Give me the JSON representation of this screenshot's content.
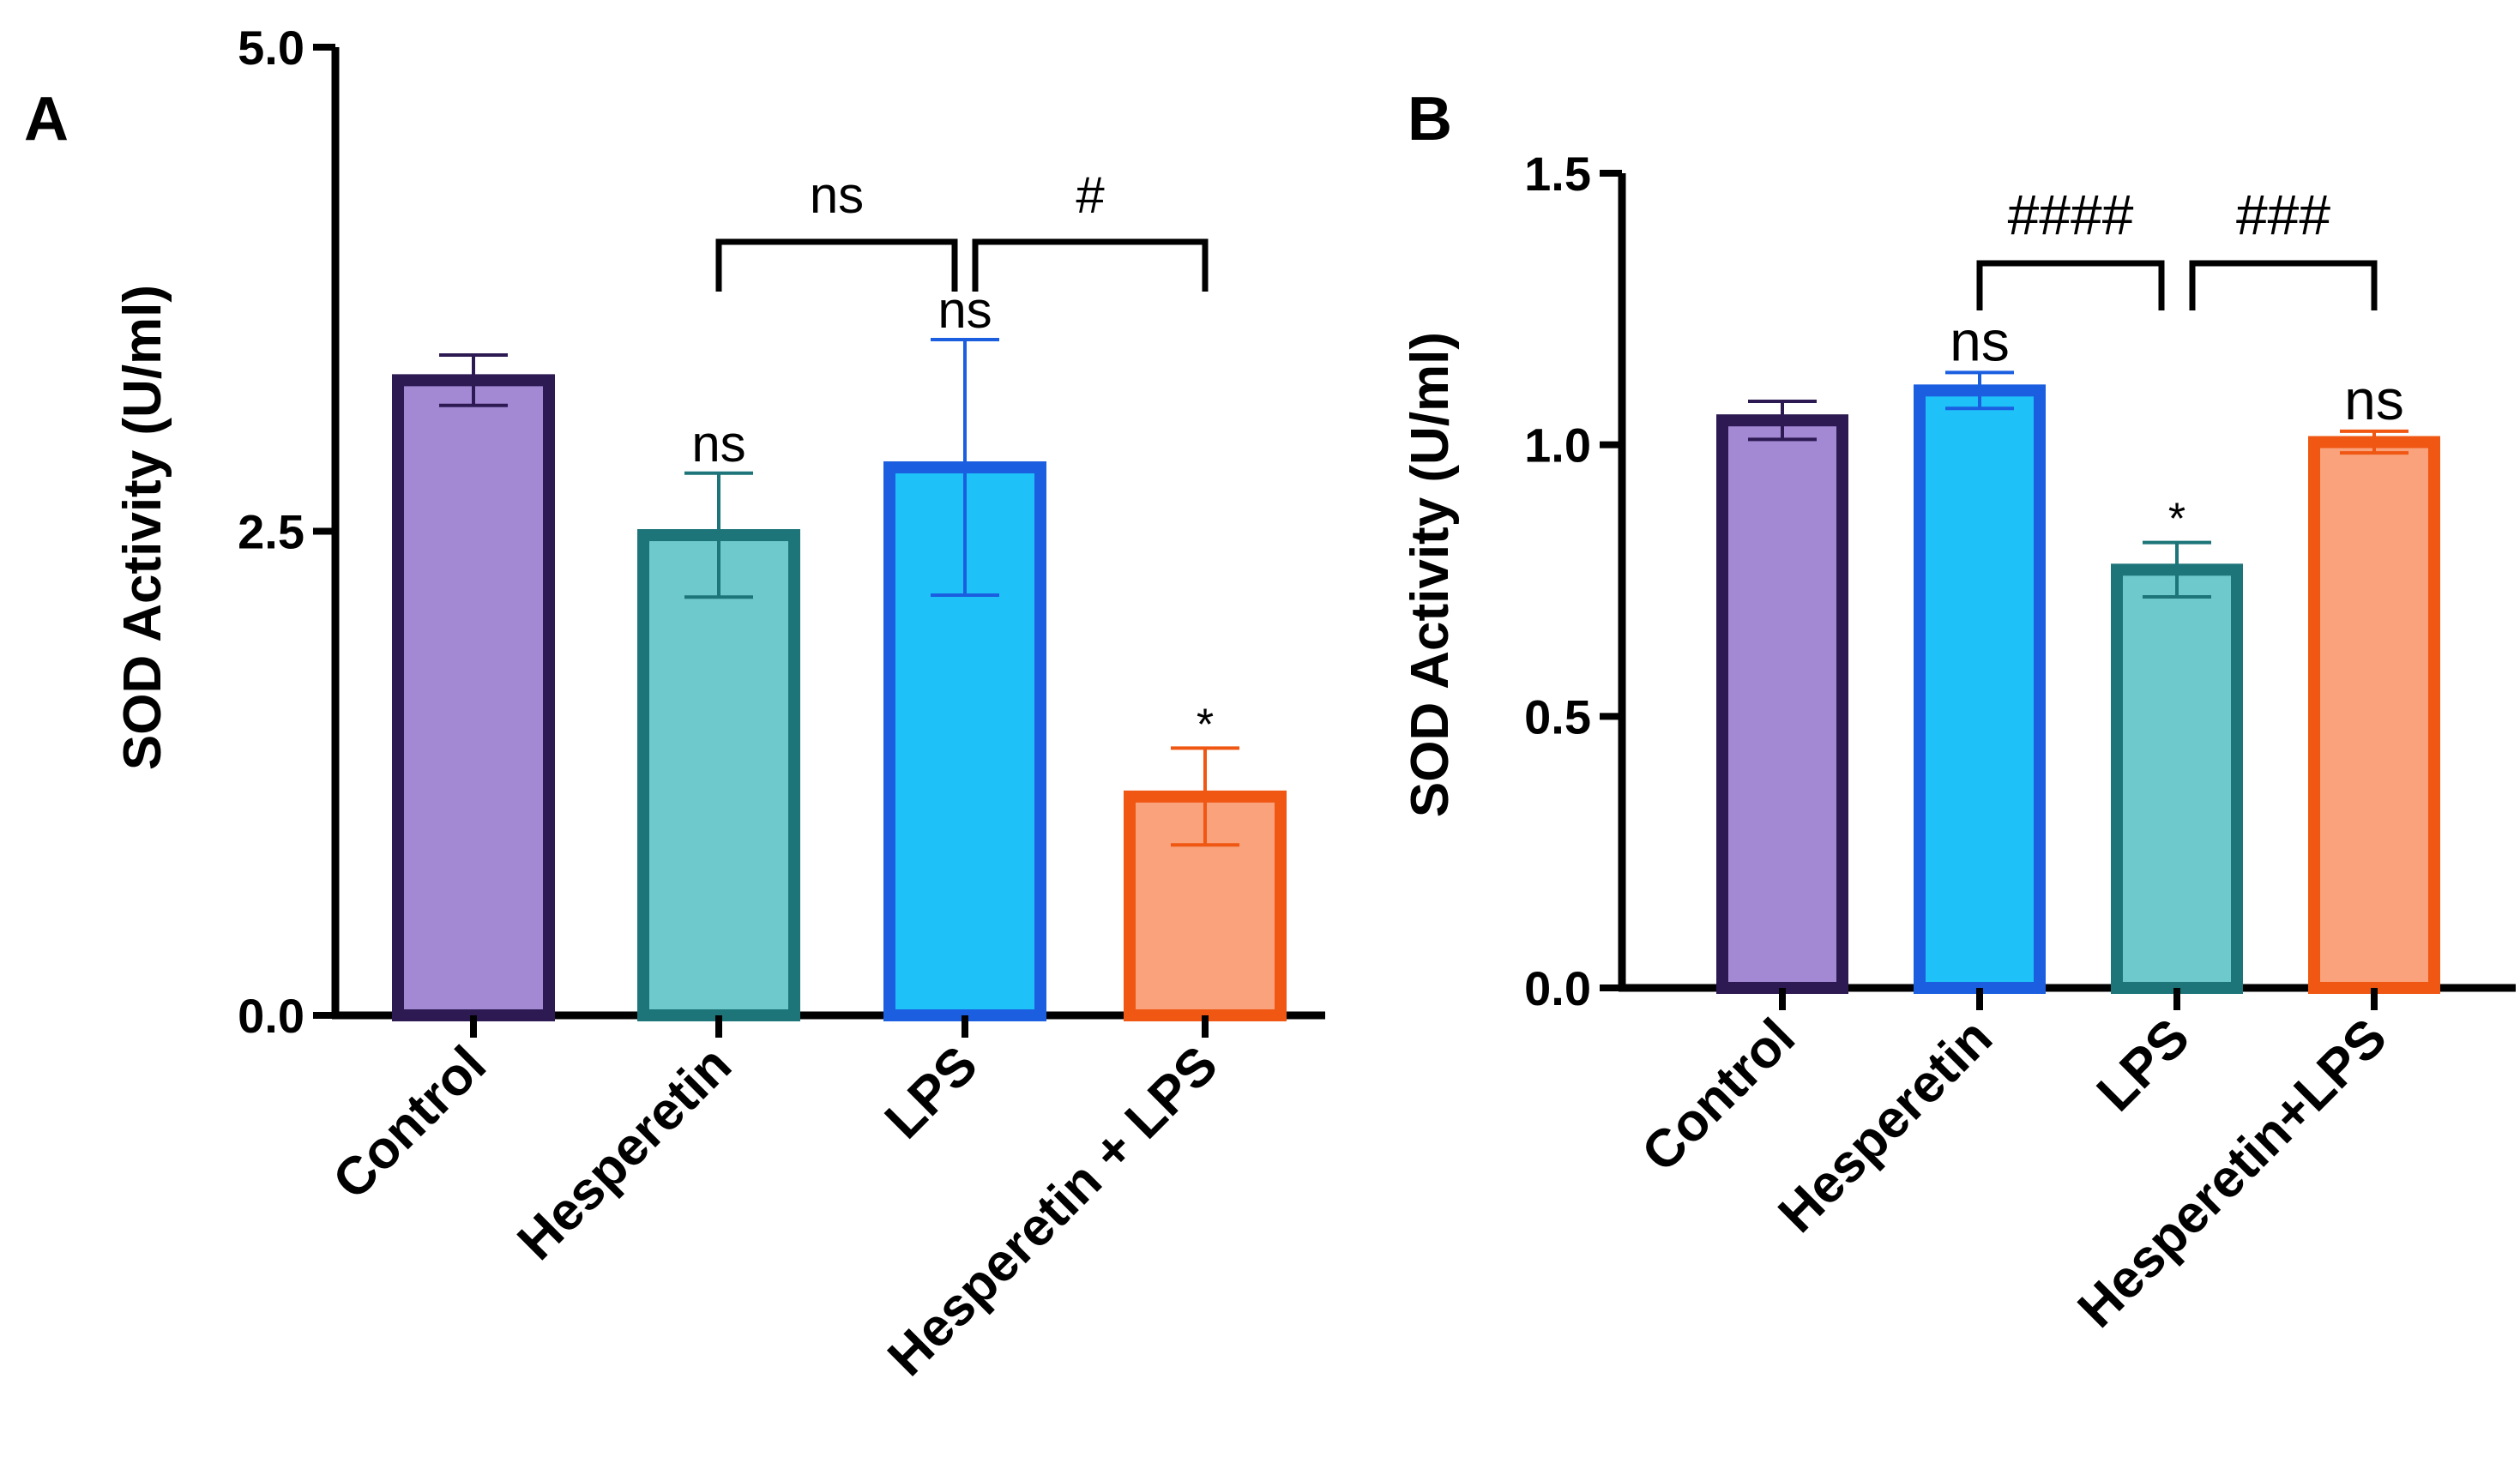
{
  "chart_data": [
    {
      "panel": "A",
      "type": "bar",
      "ylabel": "SOD Activity (U/ml)",
      "ylim": [
        0,
        5.0
      ],
      "yticks": [
        "0.0",
        "2.5",
        "5.0"
      ],
      "categories": [
        "Control",
        "Hesperetin",
        "LPS",
        "Hesperetin + LPS"
      ],
      "values": [
        3.28,
        2.48,
        2.83,
        1.13
      ],
      "errors": [
        0.13,
        0.32,
        0.66,
        0.25
      ],
      "colors": {
        "fill": [
          "#a389d4",
          "#6ec9cc",
          "#1fc1f9",
          "#f9a27c"
        ],
        "stroke": [
          "#2e1a52",
          "#1d7579",
          "#1b5fe0",
          "#ef5713"
        ]
      },
      "bar_labels": [
        "",
        "ns",
        "ns",
        "*"
      ],
      "brackets": [
        {
          "from": 1,
          "to": 2,
          "label": "ns"
        },
        {
          "from": 2,
          "to": 3,
          "label": "#"
        }
      ]
    },
    {
      "panel": "B",
      "type": "bar",
      "ylabel": "SOD Activity (U/ml)",
      "ylim": [
        0,
        1.5
      ],
      "yticks": [
        "0.0",
        "0.5",
        "1.0",
        "1.5"
      ],
      "categories": [
        "Control",
        "Hesperetin",
        "LPS",
        "Hesperetin+LPS"
      ],
      "values": [
        1.045,
        1.1,
        0.77,
        1.005
      ],
      "errors": [
        0.035,
        0.033,
        0.05,
        0.02
      ],
      "colors": {
        "fill": [
          "#a389d4",
          "#1fc1f9",
          "#6ec9cc",
          "#f9a27c"
        ],
        "stroke": [
          "#2e1a52",
          "#1b5fe0",
          "#1d7579",
          "#ef5713"
        ]
      },
      "bar_labels": [
        "",
        "ns",
        "*",
        "ns"
      ],
      "brackets": [
        {
          "from": 1,
          "to": 2,
          "label": "####"
        },
        {
          "from": 2,
          "to": 3,
          "label": "###"
        }
      ]
    }
  ]
}
